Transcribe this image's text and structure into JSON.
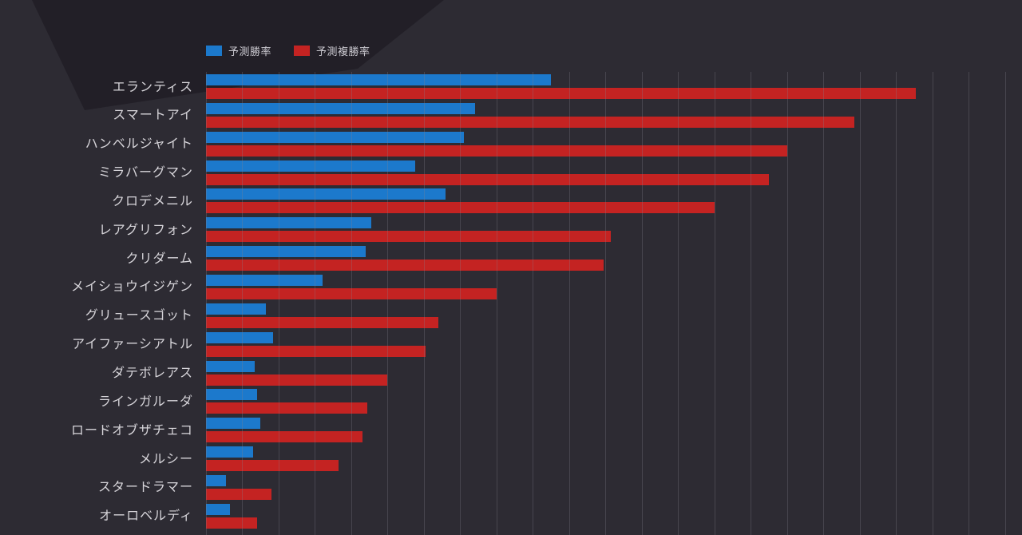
{
  "page": {
    "background_color": "#2d2b33",
    "decoration_color": "#221f27"
  },
  "legend": {
    "items": [
      {
        "label": "予測勝率",
        "color": "#1c79cc"
      },
      {
        "label": "予測複勝率",
        "color": "#c42322"
      }
    ]
  },
  "chart_data": {
    "type": "bar",
    "orientation": "horizontal",
    "title": "",
    "xlabel": "",
    "ylabel": "",
    "unit": "percent",
    "grid": true,
    "legend_position": "top-left",
    "xlim": [
      0,
      44.5
    ],
    "gridline_interval": 2,
    "categories": [
      "エランティス",
      "スマートアイ",
      "ハンベルジャイト",
      "ミラバーグマン",
      "クロデメニル",
      "レアグリフォン",
      "クリダーム",
      "メイショウイジゲン",
      "グリュースゴット",
      "アイファーシアトル",
      "ダテボレアス",
      "ラインガルーダ",
      "ロードオブザチェコ",
      "メルシー",
      "スタードラマー",
      "オーロベルディ"
    ],
    "series": [
      {
        "name": "予測勝率",
        "color": "#1c79cc",
        "values": [
          19.0,
          14.8,
          14.2,
          11.5,
          13.2,
          9.1,
          8.8,
          6.4,
          3.3,
          3.7,
          2.7,
          2.8,
          3.0,
          2.6,
          1.1,
          1.3
        ]
      },
      {
        "name": "予測複勝率",
        "color": "#c42322",
        "values": [
          39.1,
          35.7,
          32.0,
          31.0,
          28.0,
          22.3,
          21.9,
          16.0,
          12.8,
          12.1,
          10.0,
          8.9,
          8.6,
          7.3,
          3.6,
          2.8
        ]
      }
    ]
  }
}
